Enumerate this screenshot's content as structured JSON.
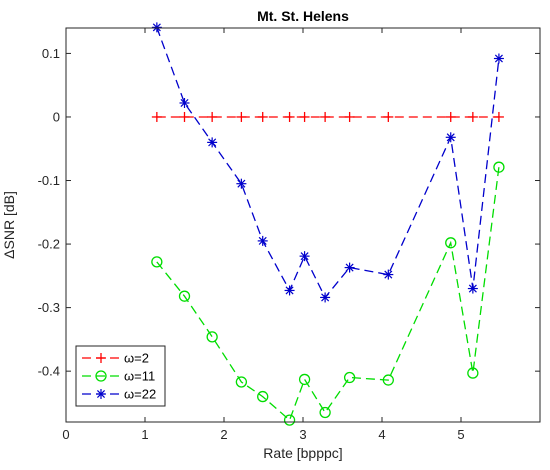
{
  "chart_data": {
    "type": "line",
    "title": "Mt. St. Helens",
    "xlabel": "Rate [bpppc]",
    "ylabel": "ΔSNR [dB]",
    "xlim": [
      0,
      6
    ],
    "ylim": [
      -0.48,
      0.14
    ],
    "xticks": [
      0,
      1,
      2,
      3,
      4,
      5
    ],
    "yticks": [
      0.1,
      0,
      -0.1,
      -0.2,
      -0.3,
      -0.4
    ],
    "xtick_labels": [
      "0",
      "1",
      "2",
      "3",
      "4",
      "5"
    ],
    "ytick_labels": [
      "0.1",
      "0",
      "-0.1",
      "-0.2",
      "-0.3",
      "-0.4"
    ],
    "grid": false,
    "legend_position": "bottom-left",
    "series": [
      {
        "name": "ω=2",
        "color": "#ff0000",
        "marker": "plus",
        "x": [
          1.15,
          1.5,
          1.85,
          2.22,
          2.49,
          2.83,
          3.02,
          3.28,
          3.59,
          4.08,
          4.87,
          5.15,
          5.48
        ],
        "y": [
          0,
          0,
          0,
          0,
          0,
          0,
          0,
          0,
          0,
          0,
          0,
          0,
          0
        ]
      },
      {
        "name": "ω=11",
        "color": "#00dd00",
        "marker": "circle",
        "x": [
          1.15,
          1.5,
          1.85,
          2.22,
          2.49,
          2.83,
          3.02,
          3.28,
          3.59,
          4.08,
          4.87,
          5.15,
          5.48
        ],
        "y": [
          -0.228,
          -0.282,
          -0.346,
          -0.417,
          -0.44,
          -0.477,
          -0.413,
          -0.465,
          -0.41,
          -0.414,
          -0.198,
          -0.403,
          -0.079
        ]
      },
      {
        "name": "ω=22",
        "color": "#0000cc",
        "marker": "star",
        "x": [
          1.15,
          1.5,
          1.85,
          2.22,
          2.49,
          2.83,
          3.02,
          3.28,
          3.59,
          4.08,
          4.87,
          5.15,
          5.48
        ],
        "y": [
          0.141,
          0.022,
          -0.04,
          -0.105,
          -0.195,
          -0.273,
          -0.219,
          -0.284,
          -0.237,
          -0.248,
          -0.032,
          -0.27,
          0.092
        ]
      }
    ]
  }
}
